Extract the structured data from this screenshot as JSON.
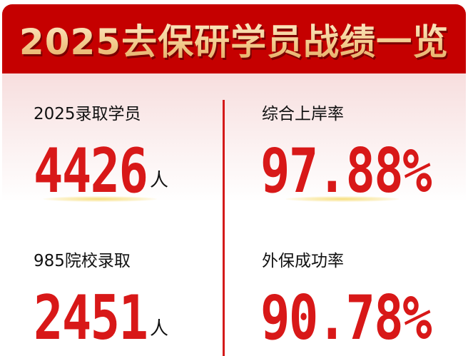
{
  "header": {
    "title": "2025去保研学员战绩一览"
  },
  "stats": [
    {
      "label": "2025录取学员",
      "value": "4426",
      "unit": "人"
    },
    {
      "label": "综合上岸率",
      "value": "97.88%"
    },
    {
      "label": "985院校录取",
      "value": "2451",
      "unit": "人"
    },
    {
      "label": "外保成功率",
      "value": "90.78%"
    }
  ],
  "colors": {
    "header_red": "#c50000",
    "number_red": "#d81818",
    "title_gold": "#f2c98a"
  }
}
